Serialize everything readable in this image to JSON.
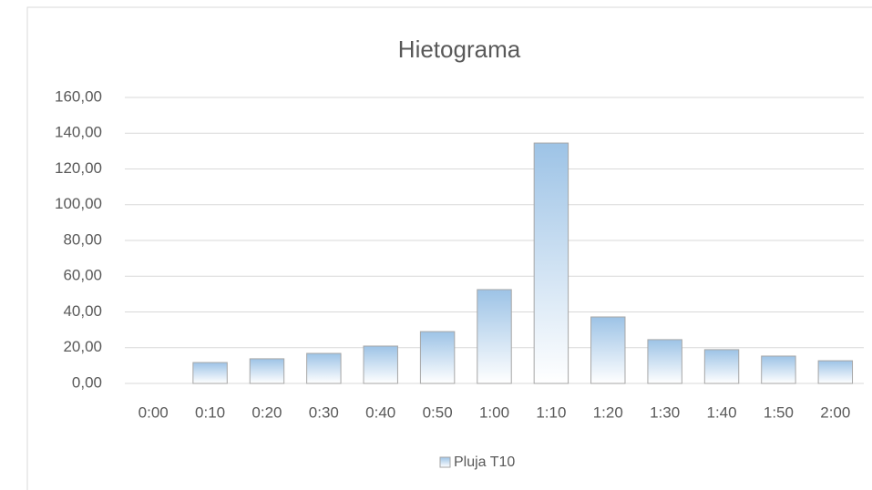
{
  "chart_data": {
    "type": "bar",
    "title": "Hietograma",
    "categories": [
      "0:00",
      "0:10",
      "0:20",
      "0:30",
      "0:40",
      "0:50",
      "1:00",
      "1:10",
      "1:20",
      "1:30",
      "1:40",
      "1:50",
      "2:00"
    ],
    "series": [
      {
        "name": "Pluja T10",
        "color": "#9dc3e6",
        "values": [
          0,
          11.7,
          13.8,
          16.8,
          20.9,
          29.0,
          52.5,
          134.5,
          37.2,
          24.5,
          18.9,
          15.3,
          12.7
        ]
      }
    ],
    "ylim": [
      0,
      160
    ],
    "yticks": [
      {
        "value": 0,
        "label": "0,00"
      },
      {
        "value": 20,
        "label": "20,00"
      },
      {
        "value": 40,
        "label": "40,00"
      },
      {
        "value": 60,
        "label": "60,00"
      },
      {
        "value": 80,
        "label": "80,00"
      },
      {
        "value": 100,
        "label": "100,00"
      },
      {
        "value": 120,
        "label": "120,00"
      },
      {
        "value": 140,
        "label": "140,00"
      },
      {
        "value": 160,
        "label": "160,00"
      }
    ],
    "grid": true,
    "legend": "bottom"
  }
}
